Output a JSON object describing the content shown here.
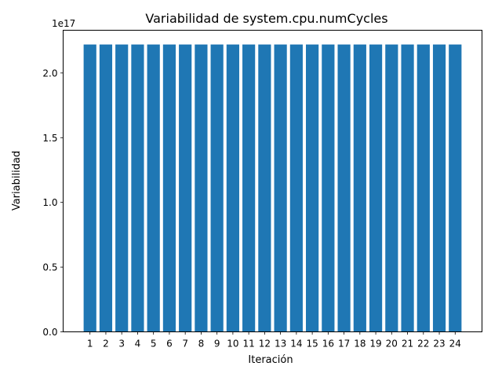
{
  "chart_data": {
    "type": "bar",
    "title": "Variabilidad de system.cpu.numCycles",
    "xlabel": "Iteración",
    "ylabel": "Variabilidad",
    "offset_label": "1e17",
    "categories": [
      "1",
      "2",
      "3",
      "4",
      "5",
      "6",
      "7",
      "8",
      "9",
      "10",
      "11",
      "12",
      "13",
      "14",
      "15",
      "16",
      "17",
      "18",
      "19",
      "20",
      "21",
      "22",
      "23",
      "24"
    ],
    "values": [
      2.22e+17,
      2.22e+17,
      2.22e+17,
      2.22e+17,
      2.22e+17,
      2.22e+17,
      2.22e+17,
      2.22e+17,
      2.22e+17,
      2.22e+17,
      2.22e+17,
      2.22e+17,
      2.22e+17,
      2.22e+17,
      2.22e+17,
      2.22e+17,
      2.22e+17,
      2.22e+17,
      2.22e+17,
      2.22e+17,
      2.22e+17,
      2.22e+17,
      2.22e+17,
      2.22e+17
    ],
    "ylim": [
      0,
      2.33e+17
    ],
    "yticks": [
      0,
      5e+16,
      1e+17,
      1.5e+17,
      2e+17
    ],
    "ytick_labels": [
      "0.0",
      "0.5",
      "1.0",
      "1.5",
      "2.0"
    ],
    "bar_color": "#1f77b4",
    "grid": false,
    "legend": "none"
  }
}
